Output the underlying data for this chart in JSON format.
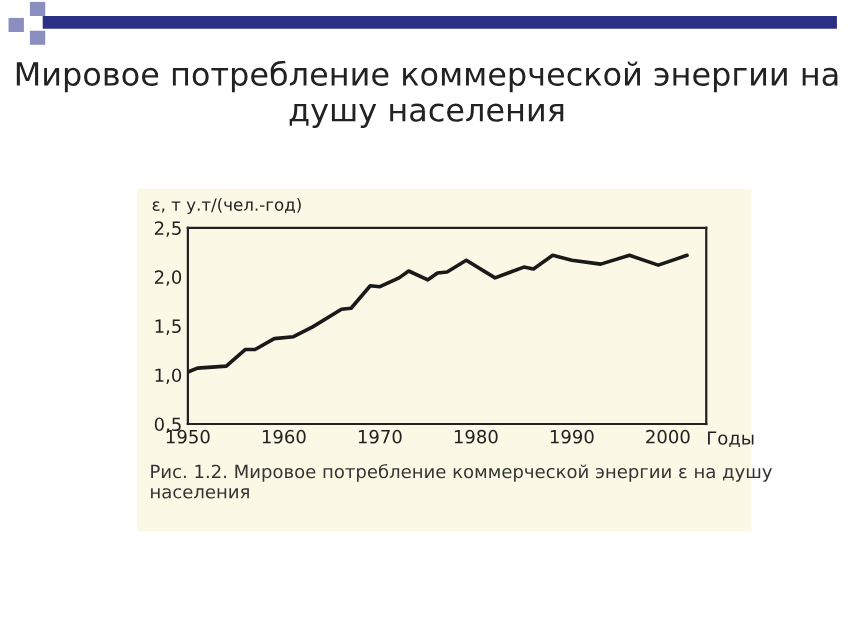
{
  "chart_data": {
    "type": "line",
    "title": "Мировое потребление коммерческой энергии на душу населения",
    "ylabel": "ε, т у.т/(чел.-год)",
    "xlabel": "Годы",
    "annotations": [
      "Рис. 1.2. Мировое потребление коммерческой энергии ε на душу населения"
    ],
    "series": [
      {
        "color": "#1a1a1a",
        "x": [
          1950,
          1951,
          1954,
          1956,
          1957,
          1959,
          1961,
          1963,
          1966,
          1967,
          1969,
          1970,
          1972,
          1973,
          1975,
          1976,
          1977,
          1979,
          1982,
          1985,
          1986,
          1988,
          1990,
          1993,
          1996,
          1999,
          2002
        ],
        "values": [
          1.03,
          1.07,
          1.09,
          1.26,
          1.26,
          1.37,
          1.39,
          1.49,
          1.67,
          1.68,
          1.91,
          1.9,
          1.99,
          2.06,
          1.97,
          2.04,
          2.05,
          2.17,
          1.99,
          2.1,
          2.08,
          2.22,
          2.17,
          2.13,
          2.22,
          2.12,
          2.22
        ]
      }
    ],
    "xlim": [
      1950,
      2004
    ],
    "xticks": [
      1950,
      1960,
      1970,
      1980,
      1990,
      2000
    ],
    "ylim": [
      0.5,
      2.5
    ],
    "yticks": [
      {
        "value": 0.5,
        "label": "0,5"
      },
      {
        "value": 1.0,
        "label": "1,0"
      },
      {
        "value": 1.5,
        "label": "1,5"
      },
      {
        "value": 2.0,
        "label": "2,0"
      },
      {
        "value": 2.5,
        "label": "2,5"
      }
    ],
    "grid": false,
    "legend": false,
    "marker": "none",
    "line_style": "solid"
  }
}
